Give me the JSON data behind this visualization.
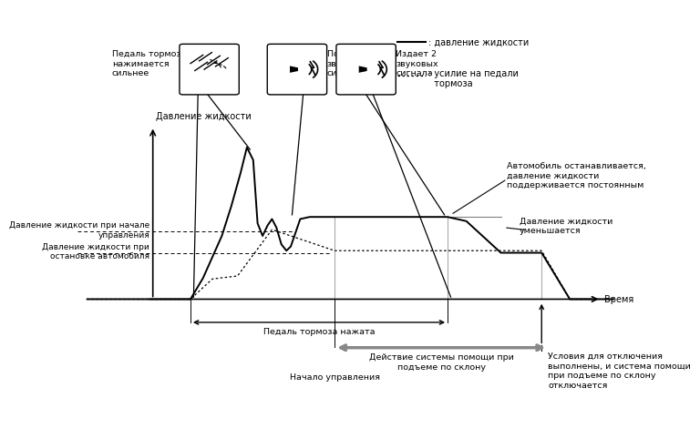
{
  "background_color": "#ffffff",
  "legend_solid_label": ": давление жидкости",
  "legend_dotted_label": ": усилие на педали\n  тормоза",
  "label_pressure_y": "Давление жидкости",
  "label_time_x": "Время",
  "label_pressure_control_start": "Давление жидкости при начале\nуправления",
  "label_pressure_stop": "Давление жидкости при\nостановке автомобиля",
  "label_pedal_pressed": "Педаль тормоза нажата",
  "label_brake_harder": "Педаль тормоза\nнажимается\nсильнее",
  "label_beep1": "Подает 1\nзвуковой\nсигнал",
  "label_beep2": "Издает 2\nзвуковых\nсигнала",
  "label_car_stops": "Автомобиль останавливается,\nдавление жидкости\nподдерживается постоянным",
  "label_pressure_decreases": "Давление жидкости\nуменьшается",
  "label_system_active": "Действие системы помощи при\nподъеме по склону",
  "label_control_start": "Начало управления",
  "label_disengage": "Условия для отключения\nвыполнены, и система помощи\nпри подъеме по склону\nотключается",
  "x_axis_start": 0.08,
  "x_axis_end": 0.93,
  "y_axis_bottom": 0.18,
  "y_axis_top": 0.75
}
